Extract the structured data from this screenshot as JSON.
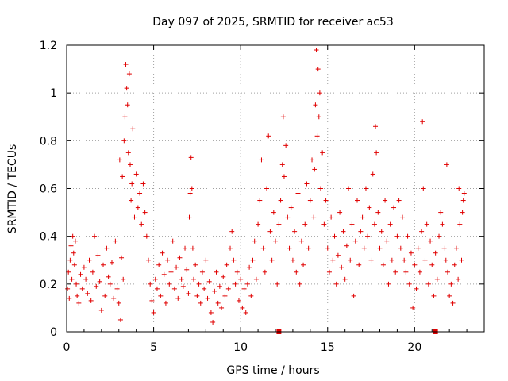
{
  "chart_data": {
    "type": "scatter",
    "title": "Day 097 of 2025, SRMTID for receiver ac53",
    "xlabel": "GPS time / hours",
    "ylabel": "SRMTID / TECUs",
    "xlim": [
      0,
      24
    ],
    "ylim": [
      0,
      1.2
    ],
    "xticks": [
      0,
      5,
      10,
      15,
      20
    ],
    "yticks": [
      0,
      0.2,
      0.4,
      0.6,
      0.8,
      1,
      1.2
    ],
    "xtick_labels": [
      "0",
      "5",
      "10",
      "15",
      "20"
    ],
    "ytick_labels": [
      "0",
      "0.2",
      "0.4",
      "0.6",
      "0.8",
      "1",
      "1.2"
    ],
    "grid": true,
    "marker": "plus",
    "color": "#e00000",
    "series": [
      {
        "name": "SRMTID",
        "points": [
          [
            0.05,
            0.18
          ],
          [
            0.1,
            0.25
          ],
          [
            0.15,
            0.14
          ],
          [
            0.2,
            0.3
          ],
          [
            0.25,
            0.36
          ],
          [
            0.3,
            0.22
          ],
          [
            0.35,
            0.4
          ],
          [
            0.4,
            0.33
          ],
          [
            0.45,
            0.28
          ],
          [
            0.5,
            0.38
          ],
          [
            0.55,
            0.2
          ],
          [
            0.6,
            0.15
          ],
          [
            0.7,
            0.12
          ],
          [
            0.8,
            0.24
          ],
          [
            0.9,
            0.18
          ],
          [
            1.0,
            0.27
          ],
          [
            1.1,
            0.22
          ],
          [
            1.2,
            0.16
          ],
          [
            1.3,
            0.3
          ],
          [
            1.4,
            0.13
          ],
          [
            1.5,
            0.25
          ],
          [
            1.6,
            0.4
          ],
          [
            1.7,
            0.19
          ],
          [
            1.8,
            0.32
          ],
          [
            1.9,
            0.21
          ],
          [
            2.0,
            0.09
          ],
          [
            2.1,
            0.28
          ],
          [
            2.2,
            0.15
          ],
          [
            2.3,
            0.35
          ],
          [
            2.4,
            0.23
          ],
          [
            2.5,
            0.2
          ],
          [
            2.6,
            0.29
          ],
          [
            2.7,
            0.14
          ],
          [
            2.8,
            0.38
          ],
          [
            2.9,
            0.18
          ],
          [
            3.0,
            0.12
          ],
          [
            3.05,
            0.72
          ],
          [
            3.1,
            0.05
          ],
          [
            3.15,
            0.31
          ],
          [
            3.2,
            0.65
          ],
          [
            3.25,
            0.22
          ],
          [
            3.3,
            0.8
          ],
          [
            3.35,
            0.9
          ],
          [
            3.4,
            1.12
          ],
          [
            3.45,
            1.02
          ],
          [
            3.5,
            0.95
          ],
          [
            3.55,
            0.75
          ],
          [
            3.6,
            1.08
          ],
          [
            3.65,
            0.7
          ],
          [
            3.7,
            0.55
          ],
          [
            3.75,
            0.62
          ],
          [
            3.8,
            0.85
          ],
          [
            3.9,
            0.48
          ],
          [
            4.0,
            0.66
          ],
          [
            4.1,
            0.52
          ],
          [
            4.2,
            0.58
          ],
          [
            4.3,
            0.45
          ],
          [
            4.4,
            0.62
          ],
          [
            4.5,
            0.5
          ],
          [
            4.6,
            0.4
          ],
          [
            4.7,
            0.3
          ],
          [
            4.8,
            0.2
          ],
          [
            4.9,
            0.13
          ],
          [
            5.0,
            0.08
          ],
          [
            5.1,
            0.22
          ],
          [
            5.2,
            0.18
          ],
          [
            5.3,
            0.28
          ],
          [
            5.4,
            0.15
          ],
          [
            5.5,
            0.33
          ],
          [
            5.6,
            0.24
          ],
          [
            5.7,
            0.12
          ],
          [
            5.8,
            0.3
          ],
          [
            5.9,
            0.2
          ],
          [
            6.0,
            0.25
          ],
          [
            6.1,
            0.38
          ],
          [
            6.2,
            0.18
          ],
          [
            6.3,
            0.27
          ],
          [
            6.4,
            0.14
          ],
          [
            6.5,
            0.31
          ],
          [
            6.6,
            0.22
          ],
          [
            6.7,
            0.19
          ],
          [
            6.8,
            0.35
          ],
          [
            6.9,
            0.26
          ],
          [
            7.0,
            0.16
          ],
          [
            7.05,
            0.48
          ],
          [
            7.1,
            0.58
          ],
          [
            7.15,
            0.73
          ],
          [
            7.2,
            0.6
          ],
          [
            7.25,
            0.35
          ],
          [
            7.3,
            0.22
          ],
          [
            7.4,
            0.28
          ],
          [
            7.5,
            0.15
          ],
          [
            7.6,
            0.2
          ],
          [
            7.7,
            0.12
          ],
          [
            7.8,
            0.25
          ],
          [
            7.9,
            0.18
          ],
          [
            8.0,
            0.3
          ],
          [
            8.1,
            0.14
          ],
          [
            8.2,
            0.21
          ],
          [
            8.3,
            0.08
          ],
          [
            8.4,
            0.04
          ],
          [
            8.5,
            0.17
          ],
          [
            8.6,
            0.25
          ],
          [
            8.7,
            0.12
          ],
          [
            8.8,
            0.19
          ],
          [
            8.9,
            0.1
          ],
          [
            9.0,
            0.23
          ],
          [
            9.1,
            0.15
          ],
          [
            9.2,
            0.28
          ],
          [
            9.3,
            0.18
          ],
          [
            9.4,
            0.35
          ],
          [
            9.5,
            0.42
          ],
          [
            9.6,
            0.3
          ],
          [
            9.7,
            0.2
          ],
          [
            9.8,
            0.25
          ],
          [
            9.9,
            0.13
          ],
          [
            10.0,
            0.22
          ],
          [
            10.1,
            0.1
          ],
          [
            10.2,
            0.18
          ],
          [
            10.3,
            0.08
          ],
          [
            10.4,
            0.2
          ],
          [
            10.5,
            0.27
          ],
          [
            10.6,
            0.15
          ],
          [
            10.7,
            0.3
          ],
          [
            10.8,
            0.38
          ],
          [
            10.9,
            0.22
          ],
          [
            11.0,
            0.45
          ],
          [
            11.1,
            0.55
          ],
          [
            11.2,
            0.72
          ],
          [
            11.3,
            0.35
          ],
          [
            11.4,
            0.25
          ],
          [
            11.5,
            0.6
          ],
          [
            11.6,
            0.82
          ],
          [
            11.7,
            0.42
          ],
          [
            11.8,
            0.3
          ],
          [
            11.9,
            0.5
          ],
          [
            12.0,
            0.38
          ],
          [
            12.1,
            0.2
          ],
          [
            12.2,
            0.45
          ],
          [
            12.3,
            0.55
          ],
          [
            12.4,
            0.7
          ],
          [
            12.45,
            0.9
          ],
          [
            12.5,
            0.65
          ],
          [
            12.6,
            0.78
          ],
          [
            12.7,
            0.48
          ],
          [
            12.8,
            0.35
          ],
          [
            12.9,
            0.52
          ],
          [
            13.0,
            0.3
          ],
          [
            13.1,
            0.42
          ],
          [
            13.2,
            0.25
          ],
          [
            13.3,
            0.58
          ],
          [
            13.4,
            0.2
          ],
          [
            13.5,
            0.38
          ],
          [
            13.6,
            0.28
          ],
          [
            13.7,
            0.45
          ],
          [
            13.8,
            0.62
          ],
          [
            13.9,
            0.35
          ],
          [
            14.0,
            0.55
          ],
          [
            14.1,
            0.72
          ],
          [
            14.2,
            0.48
          ],
          [
            14.25,
            0.68
          ],
          [
            14.3,
            0.95
          ],
          [
            14.35,
            1.18
          ],
          [
            14.4,
            0.82
          ],
          [
            14.45,
            1.1
          ],
          [
            14.5,
            0.9
          ],
          [
            14.55,
            1.0
          ],
          [
            14.6,
            0.6
          ],
          [
            14.7,
            0.75
          ],
          [
            14.8,
            0.45
          ],
          [
            14.9,
            0.55
          ],
          [
            15.0,
            0.35
          ],
          [
            15.1,
            0.25
          ],
          [
            15.2,
            0.48
          ],
          [
            15.3,
            0.3
          ],
          [
            15.4,
            0.4
          ],
          [
            15.5,
            0.2
          ],
          [
            15.6,
            0.32
          ],
          [
            15.7,
            0.5
          ],
          [
            15.8,
            0.27
          ],
          [
            15.9,
            0.42
          ],
          [
            16.0,
            0.22
          ],
          [
            16.1,
            0.36
          ],
          [
            16.2,
            0.6
          ],
          [
            16.3,
            0.3
          ],
          [
            16.4,
            0.45
          ],
          [
            16.5,
            0.15
          ],
          [
            16.6,
            0.38
          ],
          [
            16.7,
            0.55
          ],
          [
            16.8,
            0.28
          ],
          [
            16.9,
            0.42
          ],
          [
            17.0,
            0.48
          ],
          [
            17.1,
            0.35
          ],
          [
            17.2,
            0.6
          ],
          [
            17.3,
            0.4
          ],
          [
            17.4,
            0.52
          ],
          [
            17.5,
            0.3
          ],
          [
            17.6,
            0.66
          ],
          [
            17.7,
            0.45
          ],
          [
            17.75,
            0.86
          ],
          [
            17.8,
            0.75
          ],
          [
            17.9,
            0.5
          ],
          [
            18.0,
            0.35
          ],
          [
            18.1,
            0.42
          ],
          [
            18.2,
            0.28
          ],
          [
            18.3,
            0.55
          ],
          [
            18.4,
            0.38
          ],
          [
            18.5,
            0.2
          ],
          [
            18.6,
            0.45
          ],
          [
            18.7,
            0.3
          ],
          [
            18.8,
            0.52
          ],
          [
            18.9,
            0.25
          ],
          [
            19.0,
            0.4
          ],
          [
            19.1,
            0.55
          ],
          [
            19.2,
            0.35
          ],
          [
            19.3,
            0.48
          ],
          [
            19.4,
            0.3
          ],
          [
            19.5,
            0.25
          ],
          [
            19.6,
            0.4
          ],
          [
            19.7,
            0.2
          ],
          [
            19.8,
            0.33
          ],
          [
            19.9,
            0.1
          ],
          [
            20.0,
            0.28
          ],
          [
            20.1,
            0.18
          ],
          [
            20.2,
            0.35
          ],
          [
            20.3,
            0.25
          ],
          [
            20.4,
            0.42
          ],
          [
            20.45,
            0.88
          ],
          [
            20.5,
            0.6
          ],
          [
            20.6,
            0.3
          ],
          [
            20.7,
            0.45
          ],
          [
            20.8,
            0.2
          ],
          [
            20.9,
            0.38
          ],
          [
            21.0,
            0.28
          ],
          [
            21.1,
            0.15
          ],
          [
            21.2,
            0.33
          ],
          [
            21.3,
            0.22
          ],
          [
            21.4,
            0.4
          ],
          [
            21.5,
            0.5
          ],
          [
            21.6,
            0.45
          ],
          [
            21.7,
            0.35
          ],
          [
            21.8,
            0.3
          ],
          [
            21.85,
            0.7
          ],
          [
            21.9,
            0.25
          ],
          [
            22.0,
            0.15
          ],
          [
            22.1,
            0.2
          ],
          [
            22.2,
            0.12
          ],
          [
            22.3,
            0.28
          ],
          [
            22.4,
            0.35
          ],
          [
            22.5,
            0.22
          ],
          [
            22.55,
            0.6
          ],
          [
            22.6,
            0.45
          ],
          [
            22.7,
            0.3
          ],
          [
            22.75,
            0.5
          ],
          [
            22.8,
            0.55
          ],
          [
            22.85,
            0.58
          ]
        ]
      }
    ],
    "gap_markers_x": [
      12.2,
      21.2
    ]
  }
}
